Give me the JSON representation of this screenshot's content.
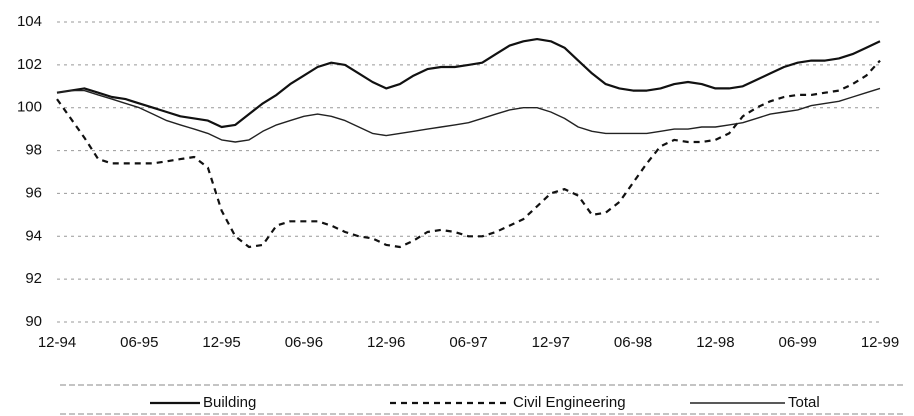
{
  "chart_data": {
    "type": "line",
    "categories": [
      "12-94",
      null,
      null,
      null,
      null,
      null,
      "06-95",
      null,
      null,
      null,
      null,
      null,
      "12-95",
      null,
      null,
      null,
      null,
      null,
      "06-96",
      null,
      null,
      null,
      null,
      null,
      "12-96",
      null,
      null,
      null,
      null,
      null,
      "06-97",
      null,
      null,
      null,
      null,
      null,
      "12-97",
      null,
      null,
      null,
      null,
      null,
      "06-98",
      null,
      null,
      null,
      null,
      null,
      "12-98",
      null,
      null,
      null,
      null,
      null,
      "06-99",
      null,
      null,
      null,
      null,
      null,
      "12-99"
    ],
    "series": [
      {
        "name": "Building",
        "color": "#111111",
        "line_style": "solid",
        "values": [
          100.7,
          100.8,
          100.9,
          100.7,
          100.5,
          100.4,
          100.2,
          100.0,
          99.8,
          99.6,
          99.5,
          99.4,
          99.1,
          99.2,
          99.7,
          100.2,
          100.6,
          101.1,
          101.5,
          101.9,
          102.1,
          102.0,
          101.6,
          101.2,
          100.9,
          101.1,
          101.5,
          101.8,
          101.9,
          101.9,
          102.0,
          102.1,
          102.5,
          102.9,
          103.1,
          103.2,
          103.1,
          102.8,
          102.2,
          101.6,
          101.1,
          100.9,
          100.8,
          100.8,
          100.9,
          101.1,
          101.2,
          101.1,
          100.9,
          100.9,
          101.0,
          101.3,
          101.6,
          101.9,
          102.1,
          102.2,
          102.2,
          102.3,
          102.5,
          102.8,
          103.1
        ]
      },
      {
        "name": "Civil Engineering",
        "color": "#111111",
        "line_style": "dashed",
        "values": [
          100.4,
          99.5,
          98.6,
          97.6,
          97.4,
          97.4,
          97.4,
          97.4,
          97.5,
          97.6,
          97.7,
          97.2,
          95.2,
          94.0,
          93.5,
          93.6,
          94.5,
          94.7,
          94.7,
          94.7,
          94.5,
          94.2,
          94.0,
          93.9,
          93.6,
          93.5,
          93.8,
          94.2,
          94.3,
          94.2,
          94.0,
          94.0,
          94.2,
          94.5,
          94.8,
          95.4,
          96.0,
          96.2,
          95.9,
          95.0,
          95.1,
          95.6,
          96.5,
          97.4,
          98.2,
          98.5,
          98.4,
          98.4,
          98.5,
          98.8,
          99.6,
          100.0,
          100.3,
          100.5,
          100.6,
          100.6,
          100.7,
          100.8,
          101.1,
          101.5,
          102.2
        ]
      },
      {
        "name": "Total",
        "color": "#222222",
        "line_style": "thin",
        "values": [
          100.7,
          100.8,
          100.8,
          100.6,
          100.4,
          100.2,
          100.0,
          99.7,
          99.4,
          99.2,
          99.0,
          98.8,
          98.5,
          98.4,
          98.5,
          98.9,
          99.2,
          99.4,
          99.6,
          99.7,
          99.6,
          99.4,
          99.1,
          98.8,
          98.7,
          98.8,
          98.9,
          99.0,
          99.1,
          99.2,
          99.3,
          99.5,
          99.7,
          99.9,
          100.0,
          100.0,
          99.8,
          99.5,
          99.1,
          98.9,
          98.8,
          98.8,
          98.8,
          98.8,
          98.9,
          99.0,
          99.0,
          99.1,
          99.1,
          99.2,
          99.3,
          99.5,
          99.7,
          99.8,
          99.9,
          100.1,
          100.2,
          100.3,
          100.5,
          100.7,
          100.9
        ]
      }
    ],
    "ylim": [
      90,
      104
    ],
    "yticks": [
      90,
      92,
      94,
      96,
      98,
      100,
      102,
      104
    ],
    "grid": true,
    "legend": "bottom"
  }
}
